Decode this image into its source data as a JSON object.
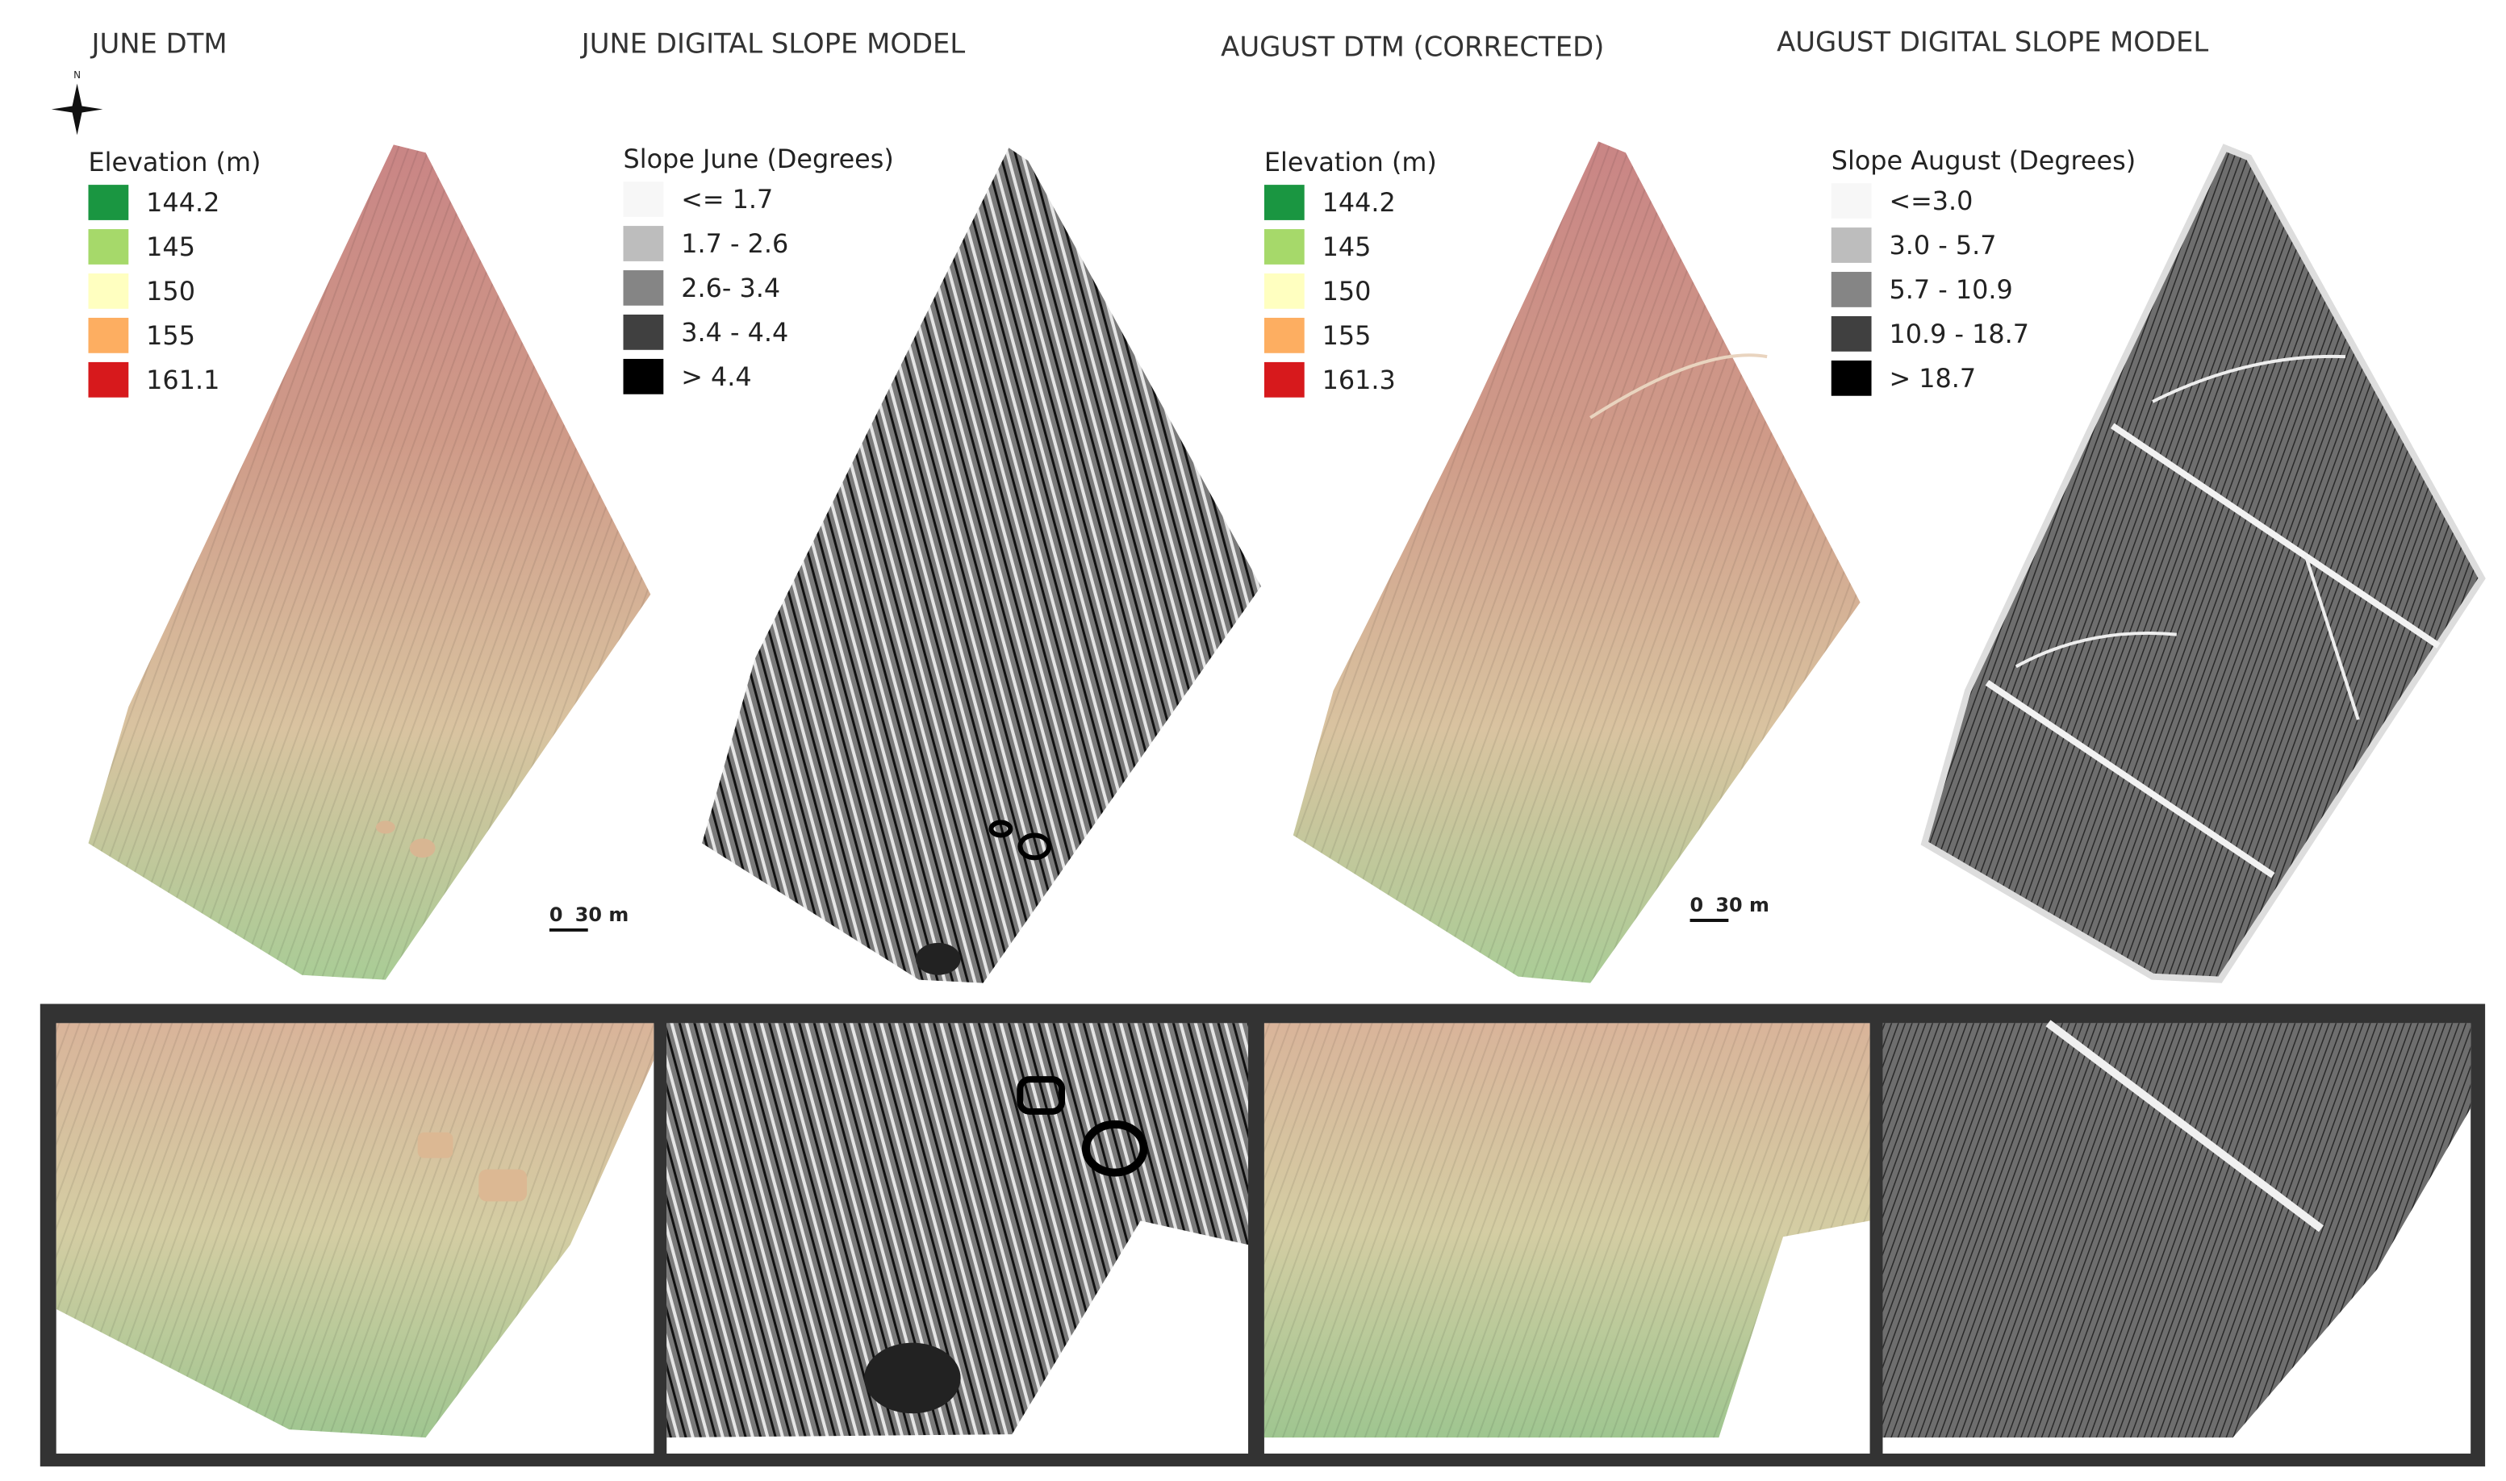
{
  "north_arrow": {
    "label": "N"
  },
  "panels": [
    {
      "title": "JUNE DTM",
      "legend": {
        "title": "Elevation (m)",
        "items": [
          {
            "label": "144.2",
            "color": "#1a9641"
          },
          {
            "label": "145",
            "color": "#a6d96a"
          },
          {
            "label": "150",
            "color": "#ffffc0"
          },
          {
            "label": "155",
            "color": "#fdae61"
          },
          {
            "label": "161.1",
            "color": "#d7191c"
          }
        ]
      },
      "scale_bar": {
        "zero": "0",
        "length": "30 m"
      }
    },
    {
      "title": "JUNE DIGITAL SLOPE MODEL",
      "legend": {
        "title": "Slope June (Degrees)",
        "items": [
          {
            "label": "<= 1.7",
            "color": "#f7f7f7"
          },
          {
            "label": "1.7 - 2.6",
            "color": "#bdbdbd"
          },
          {
            "label": "2.6- 3.4",
            "color": "#858585"
          },
          {
            "label": "3.4 - 4.4",
            "color": "#404040"
          },
          {
            "label": "> 4.4",
            "color": "#000000"
          }
        ]
      }
    },
    {
      "title": "AUGUST DTM (CORRECTED)",
      "legend": {
        "title": "Elevation (m)",
        "items": [
          {
            "label": "144.2",
            "color": "#1a9641"
          },
          {
            "label": "145",
            "color": "#a6d96a"
          },
          {
            "label": "150",
            "color": "#ffffc0"
          },
          {
            "label": "155",
            "color": "#fdae61"
          },
          {
            "label": "161.3",
            "color": "#d7191c"
          }
        ]
      },
      "scale_bar": {
        "zero": "0",
        "length": "30 m"
      }
    },
    {
      "title": "AUGUST DIGITAL SLOPE MODEL",
      "legend": {
        "title": "Slope August (Degrees)",
        "items": [
          {
            "label": "<=3.0",
            "color": "#f7f7f7"
          },
          {
            "label": "3.0 - 5.7",
            "color": "#bdbdbd"
          },
          {
            "label": "5.7 - 10.9",
            "color": "#858585"
          },
          {
            "label": "10.9 - 18.7",
            "color": "#404040"
          },
          {
            "label": "> 18.7",
            "color": "#000000"
          }
        ]
      }
    }
  ]
}
